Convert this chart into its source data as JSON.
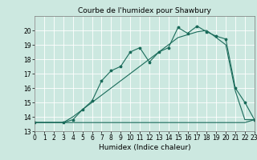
{
  "bg_color": "#cce8e0",
  "grid_color": "#ffffff",
  "line_color": "#1a6b5a",
  "title": "Courbe de l'humidex pour Shawbury",
  "xlabel": "Humidex (Indice chaleur)",
  "ylim": [
    13,
    21
  ],
  "xlim": [
    0,
    23
  ],
  "yticks": [
    13,
    14,
    15,
    16,
    17,
    18,
    19,
    20
  ],
  "xticks": [
    0,
    1,
    2,
    3,
    4,
    5,
    6,
    7,
    8,
    9,
    10,
    11,
    12,
    13,
    14,
    15,
    16,
    17,
    18,
    19,
    20,
    21,
    22,
    23
  ],
  "line1_x": [
    0,
    1,
    2,
    3,
    4,
    5,
    6,
    7,
    8,
    9,
    10,
    11,
    12,
    13,
    14,
    15,
    16,
    17,
    18,
    19,
    20,
    21,
    22,
    23
  ],
  "line1_y": [
    13.6,
    13.6,
    13.6,
    13.6,
    13.6,
    13.6,
    13.6,
    13.6,
    13.6,
    13.6,
    13.6,
    13.6,
    13.6,
    13.6,
    13.6,
    13.6,
    13.6,
    13.6,
    13.6,
    13.6,
    13.6,
    13.6,
    13.6,
    13.8
  ],
  "line2_x": [
    0,
    3,
    4,
    5,
    6,
    7,
    8,
    9,
    10,
    11,
    12,
    13,
    14,
    15,
    16,
    17,
    18,
    19,
    20,
    21,
    22,
    23
  ],
  "line2_y": [
    13.6,
    13.6,
    14.0,
    14.5,
    15.0,
    15.5,
    16.0,
    16.5,
    17.0,
    17.5,
    18.0,
    18.5,
    19.0,
    19.5,
    19.7,
    19.9,
    20.0,
    19.5,
    19.0,
    15.8,
    13.8,
    13.8
  ],
  "line3_x": [
    0,
    3,
    4,
    5,
    6,
    7,
    8,
    9,
    10,
    11,
    12,
    13,
    14,
    15,
    16,
    17,
    18,
    19,
    20,
    21,
    22,
    23
  ],
  "line3_y": [
    13.6,
    13.6,
    13.8,
    14.5,
    15.1,
    16.5,
    17.2,
    17.5,
    18.5,
    18.8,
    17.8,
    18.5,
    18.8,
    20.2,
    19.8,
    20.3,
    19.9,
    19.6,
    19.4,
    16.0,
    15.0,
    13.8
  ],
  "title_fontsize": 6.5,
  "label_fontsize": 6.5,
  "tick_fontsize": 5.5
}
